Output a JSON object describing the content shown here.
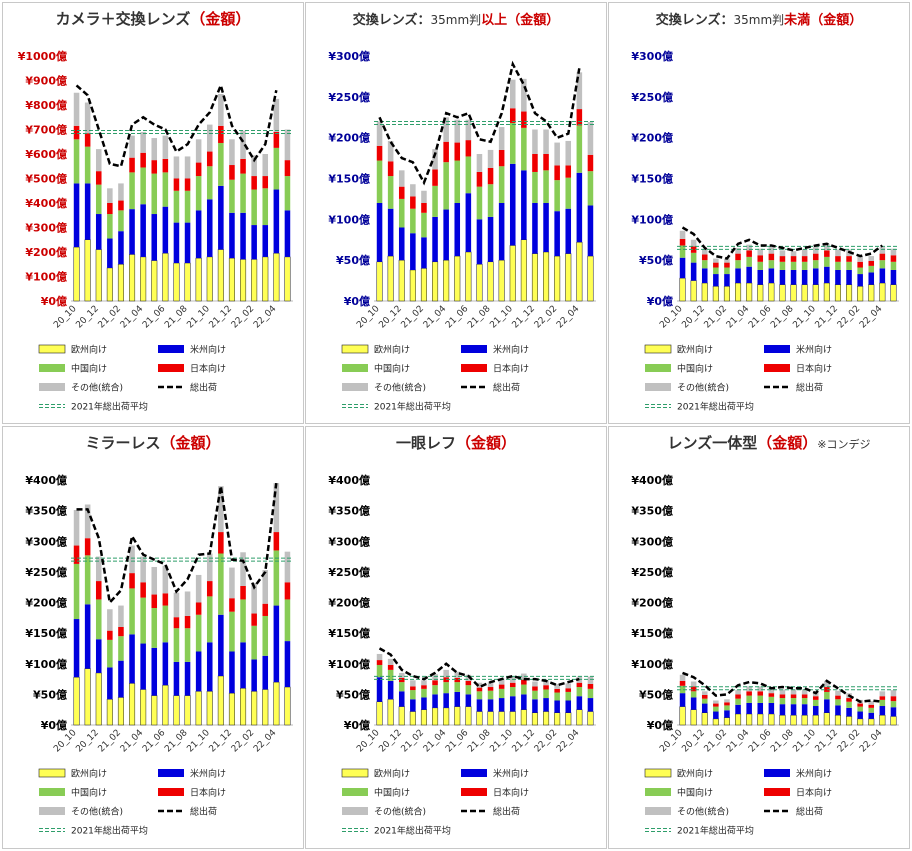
{
  "colors": {
    "eu": "#ffff55",
    "us": "#0000dd",
    "cn": "#88cc55",
    "jp": "#ee0000",
    "ot": "#c0c0c0",
    "total": "#000000",
    "avg": "#2e9e6a",
    "red_axis": "#cc0000",
    "blue_axis": "#000099"
  },
  "legend": {
    "eu": "欧州向け",
    "us": "米州向け",
    "cn": "中国向け",
    "jp": "日本向け",
    "ot": "その他(統合)",
    "total": "総出荷",
    "avg": "2021年総出荷平均"
  },
  "chart_data": [
    {
      "type": "bar",
      "title": {
        "prefix": "カメラ＋交換レンズ",
        "mid": "",
        "mid2": "",
        "suffix": "金額",
        "extra": ""
      },
      "axis_color": "#cc0000",
      "yticks": [
        "¥0億",
        "¥100億",
        "¥200億",
        "¥300億",
        "¥400億",
        "¥500億",
        "¥600億",
        "¥700億",
        "¥800億",
        "¥900億",
        "¥1000億"
      ],
      "ylim": [
        0,
        1000
      ],
      "categories": [
        "20_10",
        "",
        "20_12",
        "",
        "21_02",
        "",
        "21_04",
        "",
        "21_06",
        "",
        "21_08",
        "",
        "21_10",
        "",
        "21_12",
        "",
        "22_02",
        "",
        "22_04",
        ""
      ],
      "series": [
        {
          "key": "eu",
          "values": [
            220,
            250,
            210,
            135,
            150,
            190,
            180,
            165,
            195,
            155,
            155,
            175,
            180,
            210,
            175,
            170,
            170,
            180,
            195,
            180
          ]
        },
        {
          "key": "us",
          "values": [
            260,
            230,
            145,
            120,
            135,
            185,
            215,
            190,
            190,
            165,
            165,
            195,
            235,
            260,
            185,
            190,
            140,
            130,
            260,
            190
          ]
        },
        {
          "key": "cn",
          "values": [
            180,
            150,
            120,
            100,
            85,
            150,
            150,
            165,
            140,
            130,
            130,
            140,
            135,
            175,
            135,
            160,
            145,
            150,
            170,
            140
          ]
        },
        {
          "key": "jp",
          "values": [
            55,
            55,
            55,
            45,
            40,
            60,
            60,
            55,
            55,
            50,
            50,
            55,
            60,
            70,
            60,
            60,
            55,
            50,
            65,
            65
          ]
        },
        {
          "key": "ot",
          "values": [
            135,
            125,
            90,
            60,
            70,
            90,
            85,
            90,
            95,
            90,
            90,
            95,
            110,
            130,
            105,
            115,
            85,
            90,
            135,
            125
          ]
        }
      ],
      "total": [
        880,
        840,
        700,
        560,
        550,
        720,
        750,
        720,
        700,
        610,
        640,
        720,
        770,
        880,
        715,
        650,
        575,
        640,
        860,
        null
      ],
      "avg": 690
    },
    {
      "type": "bar",
      "title": {
        "prefix": "交換レンズ：",
        "mid": "35mm判",
        "mid2": "以上",
        "suffix": "金額",
        "extra": ""
      },
      "axis_color": "#000099",
      "yticks": [
        "¥0億",
        "¥50億",
        "¥100億",
        "¥150億",
        "¥200億",
        "¥250億",
        "¥300億"
      ],
      "ylim": [
        0,
        300
      ],
      "categories": [
        "20_10",
        "",
        "20_12",
        "",
        "21_02",
        "",
        "21_04",
        "",
        "21_06",
        "",
        "21_08",
        "",
        "21_10",
        "",
        "21_12",
        "",
        "22_02",
        "",
        "22_04",
        ""
      ],
      "series": [
        {
          "key": "eu",
          "values": [
            48,
            55,
            50,
            38,
            40,
            48,
            50,
            55,
            60,
            45,
            48,
            50,
            68,
            75,
            58,
            60,
            55,
            58,
            72,
            55
          ]
        },
        {
          "key": "us",
          "values": [
            72,
            58,
            40,
            45,
            38,
            55,
            62,
            65,
            72,
            55,
            55,
            70,
            100,
            85,
            62,
            60,
            55,
            55,
            85,
            62
          ]
        },
        {
          "key": "cn",
          "values": [
            52,
            40,
            35,
            30,
            30,
            38,
            58,
            52,
            45,
            40,
            40,
            45,
            50,
            52,
            38,
            40,
            38,
            38,
            58,
            42
          ]
        },
        {
          "key": "jp",
          "values": [
            18,
            18,
            15,
            15,
            12,
            20,
            25,
            22,
            20,
            18,
            20,
            20,
            18,
            20,
            22,
            20,
            18,
            15,
            20,
            20
          ]
        },
        {
          "key": "ot",
          "values": [
            30,
            25,
            20,
            15,
            15,
            25,
            30,
            28,
            25,
            22,
            22,
            28,
            35,
            40,
            30,
            30,
            28,
            30,
            45,
            40
          ]
        }
      ],
      "total": [
        225,
        195,
        175,
        170,
        145,
        180,
        230,
        225,
        230,
        198,
        195,
        230,
        290,
        265,
        230,
        220,
        200,
        205,
        285,
        null
      ],
      "avg": 218
    },
    {
      "type": "bar",
      "title": {
        "prefix": "交換レンズ：",
        "mid": "35mm判",
        "mid2": "未満",
        "suffix": "金額",
        "extra": ""
      },
      "axis_color": "#000099",
      "yticks": [
        "¥0億",
        "¥50億",
        "¥100億",
        "¥150億",
        "¥200億",
        "¥250億",
        "¥300億"
      ],
      "ylim": [
        0,
        300
      ],
      "categories": [
        "20_10",
        "",
        "20_12",
        "",
        "21_02",
        "",
        "21_04",
        "",
        "21_06",
        "",
        "21_08",
        "",
        "21_10",
        "",
        "21_12",
        "",
        "22_02",
        "",
        "22_04",
        ""
      ],
      "series": [
        {
          "key": "eu",
          "values": [
            28,
            25,
            22,
            18,
            18,
            22,
            22,
            20,
            22,
            20,
            20,
            20,
            20,
            22,
            20,
            20,
            18,
            20,
            22,
            20
          ]
        },
        {
          "key": "us",
          "values": [
            25,
            22,
            18,
            15,
            15,
            18,
            20,
            18,
            18,
            18,
            18,
            18,
            20,
            20,
            18,
            18,
            15,
            15,
            18,
            18
          ]
        },
        {
          "key": "cn",
          "values": [
            15,
            12,
            10,
            8,
            8,
            10,
            12,
            10,
            10,
            10,
            10,
            10,
            10,
            12,
            10,
            10,
            8,
            8,
            10,
            10
          ]
        },
        {
          "key": "jp",
          "values": [
            8,
            8,
            7,
            6,
            6,
            8,
            8,
            8,
            8,
            7,
            7,
            7,
            8,
            8,
            7,
            7,
            7,
            6,
            8,
            8
          ]
        },
        {
          "key": "ot",
          "values": [
            10,
            8,
            6,
            5,
            5,
            7,
            7,
            8,
            8,
            7,
            6,
            8,
            8,
            8,
            8,
            8,
            7,
            6,
            8,
            8
          ]
        }
      ],
      "total": [
        90,
        82,
        65,
        55,
        52,
        70,
        75,
        68,
        68,
        65,
        62,
        65,
        68,
        70,
        65,
        60,
        55,
        58,
        68,
        null
      ],
      "avg": 65
    },
    {
      "type": "bar",
      "title": {
        "prefix": "ミラーレス",
        "mid": "",
        "mid2": "",
        "suffix": "金額",
        "extra": ""
      },
      "axis_color": "#000000",
      "yticks": [
        "¥0億",
        "¥50億",
        "¥100億",
        "¥150億",
        "¥200億",
        "¥250億",
        "¥300億",
        "¥350億",
        "¥400億"
      ],
      "ylim": [
        0,
        400
      ],
      "categories": [
        "20_10",
        "",
        "20_12",
        "",
        "21_02",
        "",
        "21_04",
        "",
        "21_06",
        "",
        "21_08",
        "",
        "21_10",
        "",
        "21_12",
        "",
        "22_02",
        "",
        "22_04",
        ""
      ],
      "series": [
        {
          "key": "eu",
          "values": [
            78,
            92,
            85,
            42,
            45,
            68,
            58,
            48,
            65,
            48,
            48,
            55,
            55,
            80,
            52,
            60,
            55,
            58,
            70,
            62
          ]
        },
        {
          "key": "us",
          "values": [
            95,
            105,
            55,
            52,
            60,
            80,
            75,
            78,
            70,
            55,
            55,
            65,
            80,
            100,
            68,
            75,
            52,
            55,
            125,
            75
          ]
        },
        {
          "key": "cn",
          "values": [
            90,
            80,
            65,
            45,
            40,
            75,
            75,
            65,
            60,
            55,
            55,
            60,
            75,
            100,
            65,
            70,
            55,
            65,
            90,
            68
          ]
        },
        {
          "key": "jp",
          "values": [
            30,
            28,
            30,
            15,
            15,
            25,
            25,
            22,
            20,
            18,
            20,
            20,
            25,
            35,
            22,
            22,
            20,
            20,
            30,
            28
          ]
        },
        {
          "key": "ot",
          "values": [
            58,
            55,
            40,
            35,
            35,
            45,
            42,
            45,
            45,
            40,
            40,
            45,
            45,
            75,
            50,
            55,
            50,
            55,
            80,
            50
          ]
        }
      ],
      "total": [
        352,
        352,
        305,
        200,
        220,
        308,
        278,
        270,
        262,
        218,
        238,
        278,
        280,
        390,
        270,
        268,
        225,
        250,
        395,
        null
      ],
      "avg": 270
    },
    {
      "type": "bar",
      "title": {
        "prefix": "一眼レフ",
        "mid": "",
        "mid2": "",
        "suffix": "金額",
        "extra": ""
      },
      "axis_color": "#000000",
      "yticks": [
        "¥0億",
        "¥50億",
        "¥100億",
        "¥150億",
        "¥200億",
        "¥250億",
        "¥300億",
        "¥350億",
        "¥400億"
      ],
      "ylim": [
        0,
        400
      ],
      "categories": [
        "20_10",
        "",
        "20_12",
        "",
        "21_02",
        "",
        "21_04",
        "",
        "21_06",
        "",
        "21_08",
        "",
        "21_10",
        "",
        "21_12",
        "",
        "22_02",
        "",
        "22_04",
        ""
      ],
      "series": [
        {
          "key": "eu",
          "values": [
            38,
            42,
            30,
            22,
            25,
            28,
            28,
            30,
            30,
            22,
            22,
            22,
            22,
            25,
            20,
            22,
            20,
            20,
            25,
            22
          ]
        },
        {
          "key": "us",
          "values": [
            40,
            30,
            25,
            20,
            20,
            22,
            24,
            24,
            20,
            20,
            20,
            22,
            25,
            25,
            22,
            22,
            20,
            20,
            22,
            22
          ]
        },
        {
          "key": "cn",
          "values": [
            20,
            18,
            15,
            15,
            14,
            15,
            18,
            16,
            15,
            13,
            14,
            15,
            15,
            16,
            14,
            14,
            13,
            14,
            15,
            15
          ]
        },
        {
          "key": "jp",
          "values": [
            8,
            8,
            7,
            6,
            6,
            8,
            8,
            7,
            7,
            6,
            6,
            7,
            7,
            8,
            7,
            7,
            6,
            6,
            7,
            8
          ]
        },
        {
          "key": "ot",
          "values": [
            10,
            10,
            8,
            10,
            8,
            10,
            12,
            10,
            10,
            8,
            8,
            10,
            10,
            10,
            8,
            8,
            8,
            8,
            10,
            12
          ]
        }
      ],
      "total": [
        125,
        115,
        90,
        80,
        75,
        85,
        100,
        85,
        80,
        62,
        70,
        75,
        80,
        75,
        75,
        72,
        65,
        70,
        75,
        null
      ],
      "avg": 77
    },
    {
      "type": "bar",
      "title": {
        "prefix": "レンズ一体型",
        "mid": "",
        "mid2": "",
        "suffix": "金額",
        "extra": "※コンデジ"
      },
      "axis_color": "#000000",
      "yticks": [
        "¥0億",
        "¥50億",
        "¥100億",
        "¥150億",
        "¥200億",
        "¥250億",
        "¥300億",
        "¥350億",
        "¥400億"
      ],
      "ylim": [
        0,
        400
      ],
      "categories": [
        "20_10",
        "",
        "20_12",
        "",
        "21_02",
        "",
        "21_04",
        "",
        "21_06",
        "",
        "21_08",
        "",
        "21_10",
        "",
        "21_12",
        "",
        "22_02",
        "",
        "22_04",
        ""
      ],
      "series": [
        {
          "key": "eu",
          "values": [
            30,
            25,
            20,
            10,
            12,
            18,
            18,
            18,
            18,
            16,
            16,
            16,
            16,
            20,
            16,
            14,
            10,
            10,
            16,
            14
          ]
        },
        {
          "key": "us",
          "values": [
            22,
            20,
            15,
            12,
            12,
            15,
            18,
            18,
            18,
            18,
            18,
            18,
            15,
            22,
            16,
            14,
            12,
            10,
            15,
            15
          ]
        },
        {
          "key": "cn",
          "values": [
            12,
            10,
            8,
            8,
            8,
            10,
            12,
            12,
            10,
            10,
            10,
            10,
            10,
            12,
            10,
            10,
            8,
            8,
            10,
            10
          ]
        },
        {
          "key": "jp",
          "values": [
            8,
            8,
            6,
            5,
            5,
            7,
            7,
            7,
            6,
            6,
            6,
            6,
            6,
            8,
            6,
            6,
            5,
            5,
            6,
            8
          ]
        },
        {
          "key": "ot",
          "values": [
            10,
            8,
            6,
            5,
            5,
            7,
            8,
            8,
            8,
            8,
            8,
            8,
            8,
            10,
            8,
            8,
            6,
            6,
            8,
            10
          ]
        }
      ],
      "total": [
        85,
        78,
        65,
        48,
        50,
        65,
        70,
        68,
        60,
        62,
        60,
        60,
        52,
        72,
        60,
        48,
        38,
        40,
        38,
        null
      ],
      "avg": 60
    }
  ]
}
